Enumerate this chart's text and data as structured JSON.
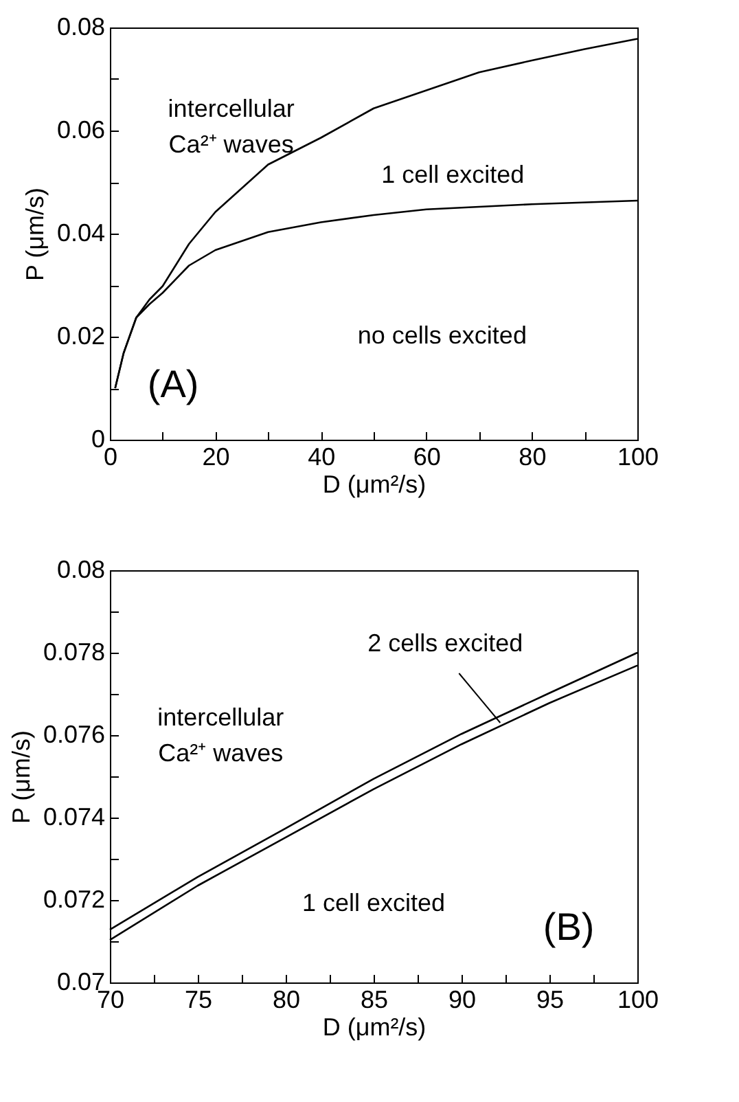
{
  "chart_data": [
    {
      "type": "line",
      "xlabel": "D (μm²/s)",
      "ylabel": "P (μm/s)",
      "xlim": [
        0,
        100
      ],
      "ylim": [
        0,
        0.08
      ],
      "xticks": [
        0,
        {
          "value": 10,
          "label": null
        },
        20,
        {
          "value": 30,
          "label": null
        },
        40,
        {
          "value": 50,
          "label": null
        },
        60,
        {
          "value": 70,
          "label": null
        },
        80,
        {
          "value": 90,
          "label": null
        },
        100
      ],
      "yticks": [
        0,
        {
          "value": 0.01,
          "label": null
        },
        0.02,
        {
          "value": 0.03,
          "label": null
        },
        0.04,
        {
          "value": 0.05,
          "label": null
        },
        0.06,
        {
          "value": 0.07,
          "label": null
        },
        0.08
      ],
      "series": [
        {
          "color": "#000000",
          "x": [
            1,
            2.6,
            5,
            7.5,
            10,
            15,
            20,
            30,
            40,
            50,
            60,
            70,
            80,
            90,
            100
          ],
          "values": [
            0.01,
            0.0168,
            0.0237,
            0.0272,
            0.0298,
            0.038,
            0.0442,
            0.0534,
            0.0586,
            0.0643,
            0.0678,
            0.0713,
            0.0736,
            0.0758,
            0.0778
          ]
        },
        {
          "color": "#000000",
          "x": [
            1,
            2.6,
            5,
            7.5,
            10,
            15,
            20,
            30,
            40,
            50,
            60,
            80,
            100
          ],
          "values": [
            0.01,
            0.0168,
            0.0237,
            0.0263,
            0.0285,
            0.0338,
            0.0368,
            0.0403,
            0.0422,
            0.0436,
            0.0447,
            0.0457,
            0.0464
          ]
        }
      ],
      "annotations": [
        "intercellular\nCa²⁺ waves",
        "1 cell excited",
        "no cells excited",
        "(A)"
      ]
    },
    {
      "type": "line",
      "xlabel": "D (μm²/s)",
      "ylabel": "P (μm/s)",
      "xlim": [
        70,
        100
      ],
      "ylim": [
        0.07,
        0.08
      ],
      "xticks": [
        70,
        {
          "value": 72.5,
          "label": null
        },
        75,
        {
          "value": 77.5,
          "label": null
        },
        80,
        {
          "value": 82.5,
          "label": null
        },
        85,
        {
          "value": 87.5,
          "label": null
        },
        90,
        {
          "value": 92.5,
          "label": null
        },
        95,
        {
          "value": 97.5,
          "label": null
        },
        100
      ],
      "yticks": [
        0.07,
        {
          "value": 0.071,
          "label": null
        },
        0.072,
        {
          "value": 0.073,
          "label": null
        },
        0.074,
        {
          "value": 0.075,
          "label": null
        },
        0.076,
        {
          "value": 0.077,
          "label": null
        },
        0.078,
        {
          "value": 0.079,
          "label": null
        },
        0.08
      ],
      "series": [
        {
          "color": "#000000",
          "x": [
            70,
            75,
            80,
            85,
            90,
            95,
            100
          ],
          "values": [
            0.07128,
            0.07256,
            0.07374,
            0.07494,
            0.07603,
            0.07702,
            0.078
          ]
        },
        {
          "color": "#000000",
          "x": [
            70,
            75,
            80,
            85,
            90,
            95,
            100
          ],
          "values": [
            0.07103,
            0.07235,
            0.07352,
            0.07469,
            0.07578,
            0.07678,
            0.07769
          ]
        }
      ],
      "annotations": [
        "intercellular\nCa²⁺ waves",
        {
          "text": "2 cells excited",
          "x": 92.2,
          "y": 0.0763
        },
        "1 cell excited",
        "(B)"
      ]
    }
  ]
}
